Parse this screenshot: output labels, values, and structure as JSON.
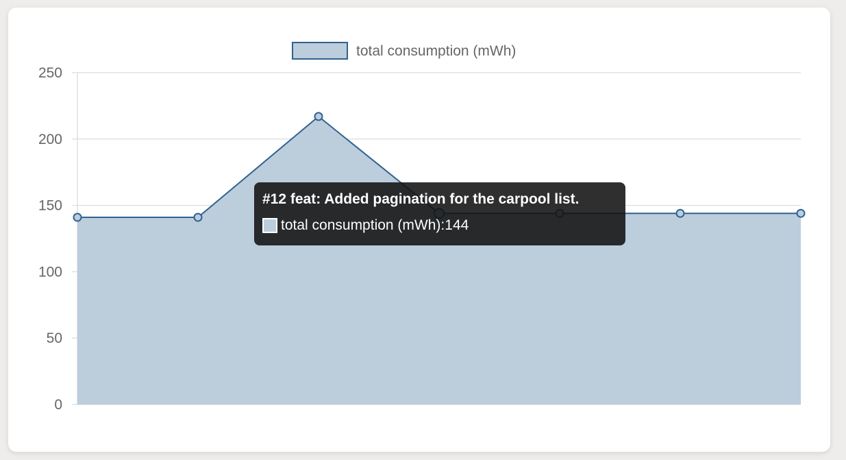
{
  "chart_data": {
    "type": "area",
    "x": [
      "",
      "",
      "",
      "#12 feat: Added pagination for the carpool list.",
      "",
      "",
      ""
    ],
    "series": [
      {
        "name": "total consumption (mWh)",
        "values": [
          141,
          141,
          217,
          144,
          144,
          144,
          144
        ]
      }
    ],
    "ylim": [
      0,
      250
    ],
    "yticks": [
      0,
      50,
      100,
      150,
      200,
      250
    ],
    "ytick_labels": [
      "0",
      "50",
      "100",
      "150",
      "200",
      "250"
    ],
    "grid": true,
    "legend": {
      "position": "top",
      "label": "total consumption (mWh)"
    },
    "colors": {
      "line": "#2f628f",
      "fill": "#bccddc",
      "grid": "#e1e1e1"
    },
    "tooltip": {
      "title": "#12 feat: Added pagination for the carpool list.",
      "series_label": "total consumption (mWh)",
      "value": "144",
      "active_index": 3
    }
  }
}
